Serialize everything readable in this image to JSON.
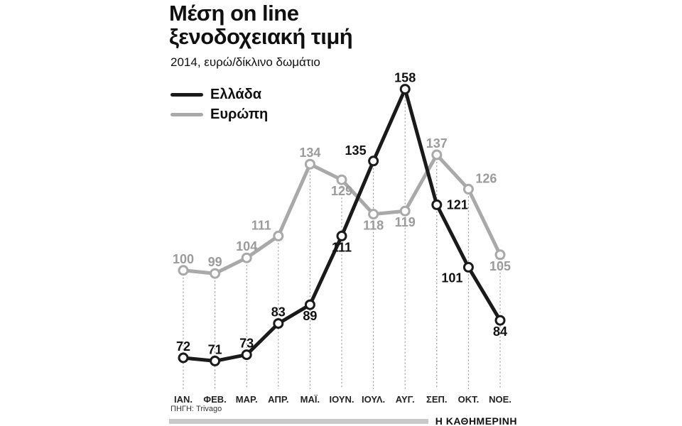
{
  "header": {
    "title": "Μέση on line\nξενοδοχειακή τιμή",
    "subtitle": "2014, ευρώ/δίκλινο δωμάτιο"
  },
  "legend": {
    "items": [
      {
        "label": "Ελλάδα",
        "color": "#1a1a1a"
      },
      {
        "label": "Ευρώπη",
        "color": "#a9a9a9"
      }
    ]
  },
  "footer": {
    "source": "ΠΗΓΗ: Trivago",
    "brand": "Η ΚΑΘΗΜΕΡΙΝΗ"
  },
  "chart_data": {
    "type": "line",
    "title": "Μέση on line ξενοδοχειακή τιμή",
    "subtitle": "2014, ευρώ/δίκλινο δωμάτιο",
    "categories": [
      "ΙΑΝ.",
      "ΦΕΒ.",
      "ΜΑΡ.",
      "ΑΠΡ.",
      "ΜΑΪ.",
      "ΙΟΥΝ.",
      "ΙΟΥΛ.",
      "ΑΥΓ.",
      "ΣΕΠ.",
      "ΟΚΤ.",
      "ΝΟΕ."
    ],
    "series": [
      {
        "name": "Ελλάδα",
        "color": "#1a1a1a",
        "label_color": "#111111",
        "values": [
          72,
          71,
          73,
          83,
          89,
          111,
          135,
          158,
          121,
          101,
          84
        ],
        "label_pos": [
          "above",
          "above",
          "above",
          "above",
          "below",
          "below",
          "above-left",
          "above",
          "right",
          "below-left",
          "below"
        ]
      },
      {
        "name": "Ευρώπη",
        "color": "#a9a9a9",
        "label_color": "#9b9b9b",
        "values": [
          100,
          99,
          104,
          111,
          134,
          129,
          118,
          119,
          137,
          126,
          105
        ],
        "label_pos": [
          "above",
          "above",
          "above",
          "above-left",
          "above",
          "below",
          "below",
          "below",
          "above",
          "above-right",
          "below"
        ]
      }
    ],
    "ylim": [
      62,
      170
    ],
    "grid": "dotted-vertical",
    "legend_position": "top-left",
    "source": "ΠΗΓΗ: Trivago",
    "brand": "Η ΚΑΘΗΜΕΡΙΝΗ"
  }
}
